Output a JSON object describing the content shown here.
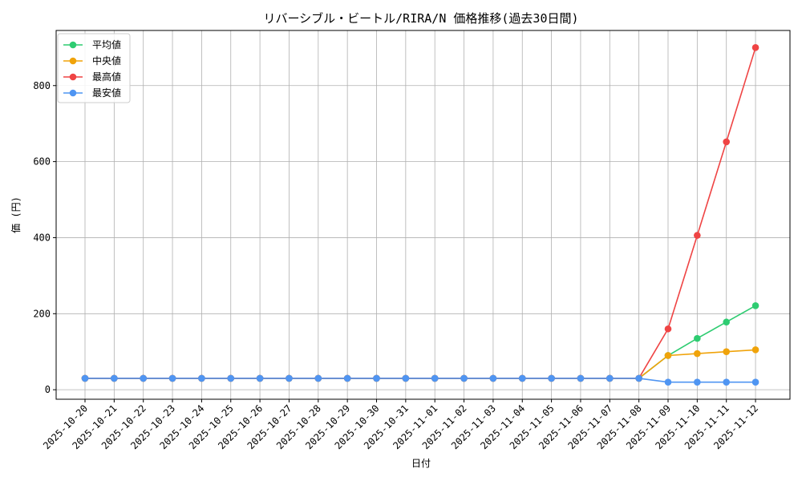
{
  "chart_data": {
    "type": "line",
    "title": "リバーシブル・ビートル/RIRA/N 価格推移(過去30日間)",
    "xlabel": "日付",
    "ylabel": "価 (円)",
    "ylim": [
      -25,
      945
    ],
    "yticks": [
      0,
      200,
      400,
      600,
      800
    ],
    "grid": true,
    "legend_position": "top-left",
    "categories": [
      "2025-10-20",
      "2025-10-21",
      "2025-10-22",
      "2025-10-23",
      "2025-10-24",
      "2025-10-25",
      "2025-10-26",
      "2025-10-27",
      "2025-10-28",
      "2025-10-29",
      "2025-10-30",
      "2025-10-31",
      "2025-11-01",
      "2025-11-02",
      "2025-11-03",
      "2025-11-04",
      "2025-11-05",
      "2025-11-06",
      "2025-11-07",
      "2025-11-08",
      "2025-11-09",
      "2025-11-10",
      "2025-11-11",
      "2025-11-12"
    ],
    "series": [
      {
        "name": "平均値",
        "color": "#2ecc71",
        "values": [
          30,
          30,
          30,
          30,
          30,
          30,
          30,
          30,
          30,
          30,
          30,
          30,
          30,
          30,
          30,
          30,
          30,
          30,
          30,
          30,
          90,
          135,
          178,
          221
        ]
      },
      {
        "name": "中央値",
        "color": "#f0a30a",
        "values": [
          30,
          30,
          30,
          30,
          30,
          30,
          30,
          30,
          30,
          30,
          30,
          30,
          30,
          30,
          30,
          30,
          30,
          30,
          30,
          30,
          90,
          95,
          100,
          105
        ]
      },
      {
        "name": "最高値",
        "color": "#ef4444",
        "values": [
          30,
          30,
          30,
          30,
          30,
          30,
          30,
          30,
          30,
          30,
          30,
          30,
          30,
          30,
          30,
          30,
          30,
          30,
          30,
          30,
          160,
          406,
          652,
          900
        ]
      },
      {
        "name": "最安値",
        "color": "#4f95f2",
        "values": [
          30,
          30,
          30,
          30,
          30,
          30,
          30,
          30,
          30,
          30,
          30,
          30,
          30,
          30,
          30,
          30,
          30,
          30,
          30,
          30,
          20,
          20,
          20,
          20
        ]
      }
    ]
  }
}
